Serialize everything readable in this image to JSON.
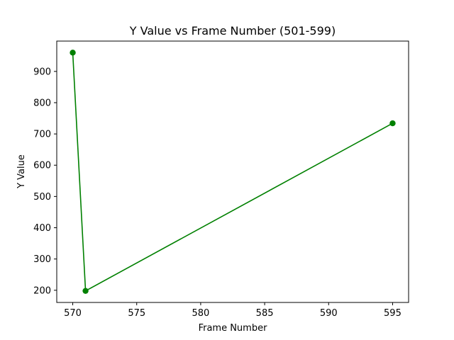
{
  "chart_data": {
    "type": "line",
    "title": "Y Value vs Frame Number (501-599)",
    "xlabel": "Frame Number",
    "ylabel": "Y Value",
    "xlim": [
      568.75,
      596.25
    ],
    "ylim": [
      161,
      997
    ],
    "x_ticks": [
      570,
      575,
      580,
      585,
      590,
      595
    ],
    "y_ticks": [
      200,
      300,
      400,
      500,
      600,
      700,
      800,
      900
    ],
    "grid": false,
    "series": [
      {
        "color": "#008000",
        "marker": "circle",
        "x": [
          570,
          571,
          595
        ],
        "y": [
          960,
          198,
          734
        ]
      }
    ]
  }
}
